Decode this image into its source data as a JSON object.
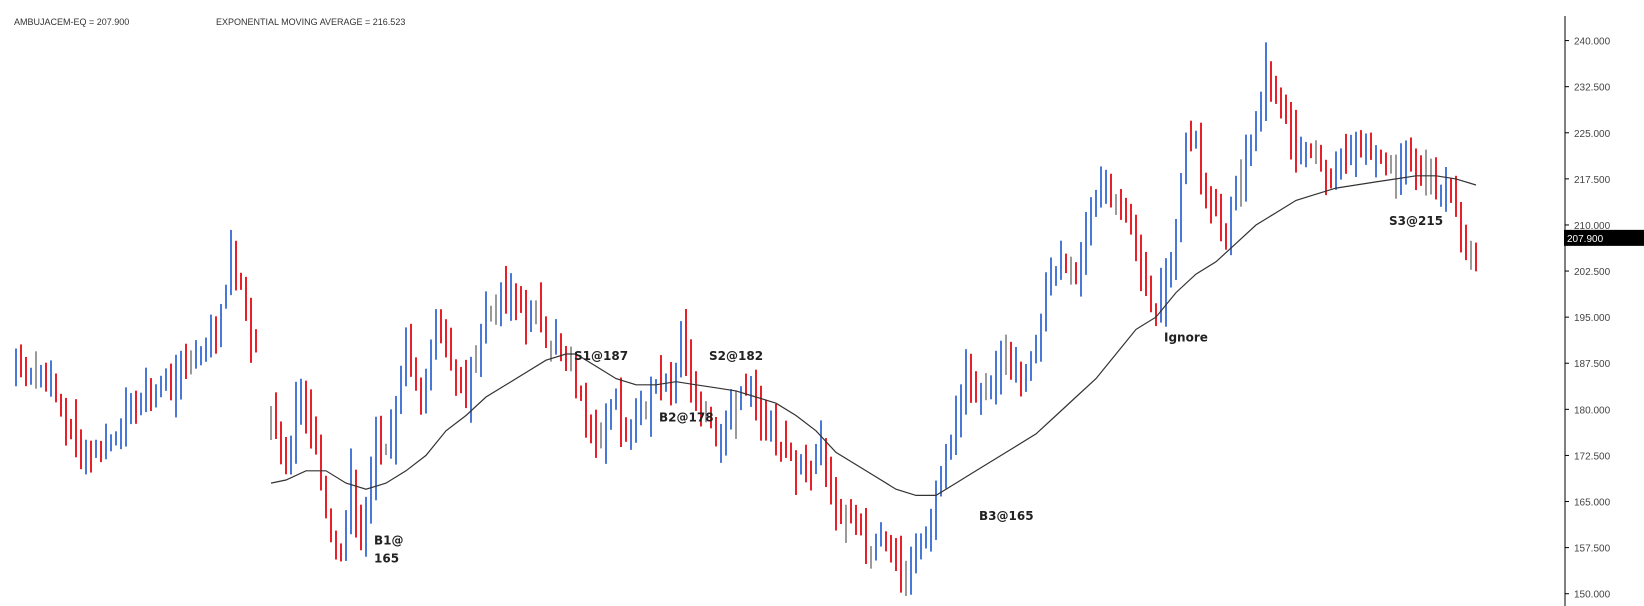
{
  "header": {
    "symbol_text": "AMBUJACEM-EQ = 207.900",
    "ema_text": "EXPONENTIAL MOVING AVERAGE = 216.523"
  },
  "chart_data": {
    "type": "ohlc",
    "symbol": "AMBUJACEM-EQ",
    "last_price": 207.9,
    "last_price_label": "207.900",
    "ema_value": 216.523,
    "ylim": [
      148.0,
      244.0
    ],
    "y_ticks": [
      "240.000",
      "232.500",
      "225.000",
      "217.500",
      "210.000",
      "202.500",
      "195.000",
      "187.500",
      "180.000",
      "172.500",
      "165.000",
      "157.500",
      "150.000"
    ],
    "y_tick_values": [
      240,
      232.5,
      225,
      217.5,
      210,
      202.5,
      195,
      187.5,
      180,
      172.5,
      165,
      157.5,
      150
    ],
    "axis_side": "right",
    "grid": false,
    "colors": {
      "up": "#4a78d8",
      "down": "#e8202a",
      "neutral": "#9a9a9a",
      "ema": "#333333",
      "axis": "#000000"
    },
    "price_waypoints": [
      [
        0,
        187
      ],
      [
        6,
        186
      ],
      [
        10,
        178
      ],
      [
        13,
        173
      ],
      [
        18,
        174
      ],
      [
        24,
        181
      ],
      [
        30,
        184
      ],
      [
        36,
        189
      ],
      [
        40,
        193
      ],
      [
        43,
        205
      ],
      [
        46,
        196
      ],
      [
        48,
        190
      ],
      [
        50,
        null
      ],
      [
        51,
        178
      ],
      [
        54,
        172
      ],
      [
        57,
        184
      ],
      [
        60,
        174
      ],
      [
        62,
        162
      ],
      [
        65,
        156
      ],
      [
        67,
        168
      ],
      [
        69,
        158
      ],
      [
        72,
        175
      ],
      [
        75,
        174
      ],
      [
        78,
        190
      ],
      [
        81,
        180
      ],
      [
        84,
        196
      ],
      [
        87,
        188
      ],
      [
        90,
        182
      ],
      [
        94,
        195
      ],
      [
        98,
        199
      ],
      [
        102,
        196
      ],
      [
        105,
        194
      ],
      [
        108,
        190
      ],
      [
        111,
        187
      ],
      [
        114,
        178
      ],
      [
        117,
        176
      ],
      [
        120,
        181
      ],
      [
        122,
        176
      ],
      [
        125,
        180
      ],
      [
        128,
        185
      ],
      [
        131,
        183
      ],
      [
        133,
        193
      ],
      [
        135,
        185
      ],
      [
        137,
        180
      ],
      [
        139,
        178
      ],
      [
        141,
        176
      ],
      [
        144,
        181
      ],
      [
        147,
        183
      ],
      [
        150,
        178
      ],
      [
        153,
        175
      ],
      [
        156,
        172
      ],
      [
        159,
        170
      ],
      [
        161,
        173
      ],
      [
        163,
        168
      ],
      [
        165,
        162
      ],
      [
        167,
        163
      ],
      [
        169,
        160
      ],
      [
        171,
        155
      ],
      [
        173,
        160
      ],
      [
        175,
        156
      ],
      [
        177,
        153
      ],
      [
        179,
        154
      ],
      [
        181,
        158
      ],
      [
        183,
        162
      ],
      [
        185,
        170
      ],
      [
        188,
        178
      ],
      [
        190,
        187
      ],
      [
        192,
        181
      ],
      [
        195,
        185
      ],
      [
        198,
        188
      ],
      [
        201,
        185
      ],
      [
        204,
        190
      ],
      [
        206,
        200
      ],
      [
        209,
        205
      ],
      [
        212,
        202
      ],
      [
        215,
        212
      ],
      [
        218,
        217
      ],
      [
        221,
        213
      ],
      [
        224,
        207
      ],
      [
        226,
        200
      ],
      [
        228,
        195
      ],
      [
        230,
        203
      ],
      [
        232,
        210
      ],
      [
        234,
        224
      ],
      [
        236,
        223
      ],
      [
        238,
        215
      ],
      [
        240,
        213
      ],
      [
        242,
        208
      ],
      [
        244,
        216
      ],
      [
        246,
        221
      ],
      [
        248,
        228
      ],
      [
        250,
        234
      ],
      [
        252,
        232
      ],
      [
        254,
        226
      ],
      [
        257,
        221
      ],
      [
        260,
        223
      ],
      [
        263,
        216
      ],
      [
        265,
        220
      ],
      [
        268,
        225
      ],
      [
        270,
        222
      ],
      [
        273,
        220
      ],
      [
        275,
        219
      ],
      [
        278,
        221
      ],
      [
        281,
        218
      ],
      [
        284,
        217
      ],
      [
        286,
        215
      ],
      [
        288,
        212
      ],
      [
        290,
        205
      ],
      [
        292,
        207
      ]
    ],
    "ema_waypoints": [
      [
        51,
        168
      ],
      [
        54,
        168.5
      ],
      [
        58,
        170
      ],
      [
        62,
        170
      ],
      [
        66,
        168
      ],
      [
        70,
        167
      ],
      [
        74,
        168
      ],
      [
        78,
        170
      ],
      [
        82,
        172.5
      ],
      [
        86,
        176.5
      ],
      [
        90,
        179
      ],
      [
        94,
        182
      ],
      [
        98,
        184
      ],
      [
        102,
        186
      ],
      [
        106,
        188
      ],
      [
        110,
        189
      ],
      [
        112,
        189
      ],
      [
        116,
        187
      ],
      [
        120,
        185
      ],
      [
        124,
        184
      ],
      [
        128,
        184
      ],
      [
        132,
        184.5
      ],
      [
        136,
        184
      ],
      [
        140,
        183.5
      ],
      [
        144,
        183
      ],
      [
        148,
        182
      ],
      [
        152,
        181
      ],
      [
        156,
        179
      ],
      [
        160,
        176.5
      ],
      [
        164,
        173
      ],
      [
        168,
        171
      ],
      [
        172,
        169
      ],
      [
        176,
        167
      ],
      [
        180,
        166
      ],
      [
        184,
        166
      ],
      [
        188,
        168
      ],
      [
        192,
        170
      ],
      [
        196,
        172
      ],
      [
        200,
        174
      ],
      [
        204,
        176
      ],
      [
        208,
        179
      ],
      [
        212,
        182
      ],
      [
        216,
        185
      ],
      [
        220,
        189
      ],
      [
        224,
        193
      ],
      [
        228,
        195
      ],
      [
        232,
        199
      ],
      [
        236,
        202
      ],
      [
        240,
        204
      ],
      [
        244,
        207
      ],
      [
        248,
        210
      ],
      [
        252,
        212
      ],
      [
        256,
        214
      ],
      [
        260,
        215
      ],
      [
        264,
        216
      ],
      [
        268,
        216.5
      ],
      [
        272,
        217
      ],
      [
        276,
        217.5
      ],
      [
        280,
        218
      ],
      [
        284,
        218
      ],
      [
        288,
        217.5
      ],
      [
        292,
        216.5
      ]
    ],
    "annotations": [
      {
        "lines": [
          "B1@",
          "165"
        ],
        "bar": 72,
        "price": 158
      },
      {
        "lines": [
          "S1@187"
        ],
        "bar": 112,
        "price": 188
      },
      {
        "lines": [
          "B2@178"
        ],
        "bar": 129,
        "price": 178
      },
      {
        "lines": [
          "S2@182"
        ],
        "bar": 139,
        "price": 188
      },
      {
        "lines": [
          "B3@165"
        ],
        "bar": 193,
        "price": 162
      },
      {
        "lines": [
          "Ignore"
        ],
        "bar": 230,
        "price": 191
      },
      {
        "lines": [
          "S3@215"
        ],
        "bar": 275,
        "price": 210
      }
    ]
  }
}
